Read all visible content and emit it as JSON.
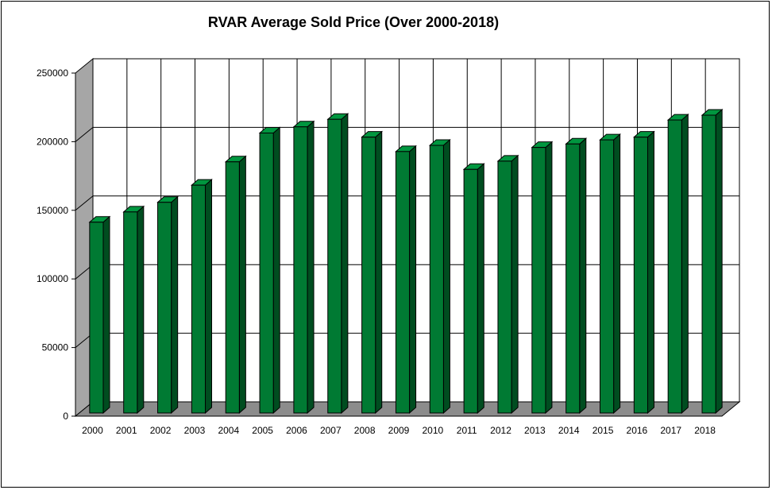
{
  "chart_data": {
    "type": "bar",
    "title": "RVAR Average Sold Price (Over 2000-2018)",
    "xlabel": "",
    "ylabel": "",
    "categories": [
      "2000",
      "2001",
      "2002",
      "2003",
      "2004",
      "2005",
      "2006",
      "2007",
      "2008",
      "2009",
      "2010",
      "2011",
      "2012",
      "2013",
      "2014",
      "2015",
      "2016",
      "2017",
      "2018"
    ],
    "values": [
      139000,
      146500,
      153500,
      166000,
      183000,
      204000,
      208500,
      214000,
      201000,
      190500,
      195000,
      177500,
      183500,
      193500,
      196000,
      199000,
      201000,
      213500,
      217000
    ],
    "ylim": [
      0,
      250000
    ],
    "yticks": [
      "0",
      "50000",
      "100000",
      "150000",
      "200000",
      "250000"
    ],
    "grid": true,
    "legend": "none",
    "three_d": true,
    "colors": {
      "bar_front": "#007a33",
      "bar_side": "#004d20",
      "bar_top": "#00963f",
      "wall": "#ffffff",
      "side_wall": "#a6a6a6",
      "floor": "#8c8c8c",
      "border": "#000000"
    }
  }
}
